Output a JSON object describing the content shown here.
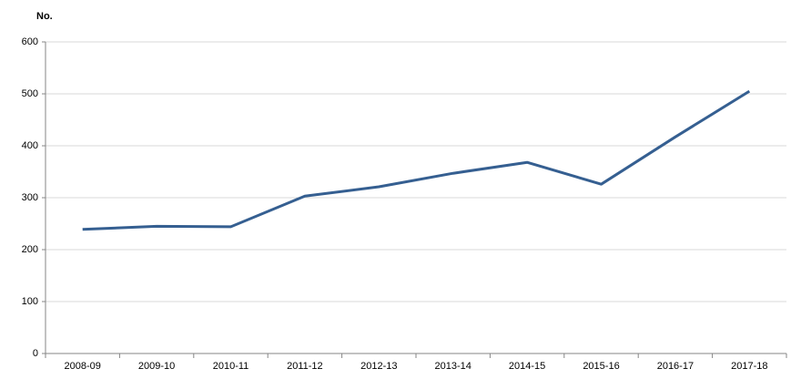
{
  "chart_data": {
    "type": "line",
    "y_label": "No.",
    "categories": [
      "2008-09",
      "2009-10",
      "2010-11",
      "2011-12",
      "2012-13",
      "2013-14",
      "2014-15",
      "2015-16",
      "2016-17",
      "2017-18"
    ],
    "series": [
      {
        "color": "#355f91",
        "values": [
          239,
          245,
          244,
          303,
          321,
          347,
          368,
          326,
          417,
          505
        ]
      }
    ],
    "ylim": [
      0,
      600
    ],
    "yticks": [
      0,
      100,
      200,
      300,
      400,
      500,
      600
    ],
    "grid": true
  }
}
